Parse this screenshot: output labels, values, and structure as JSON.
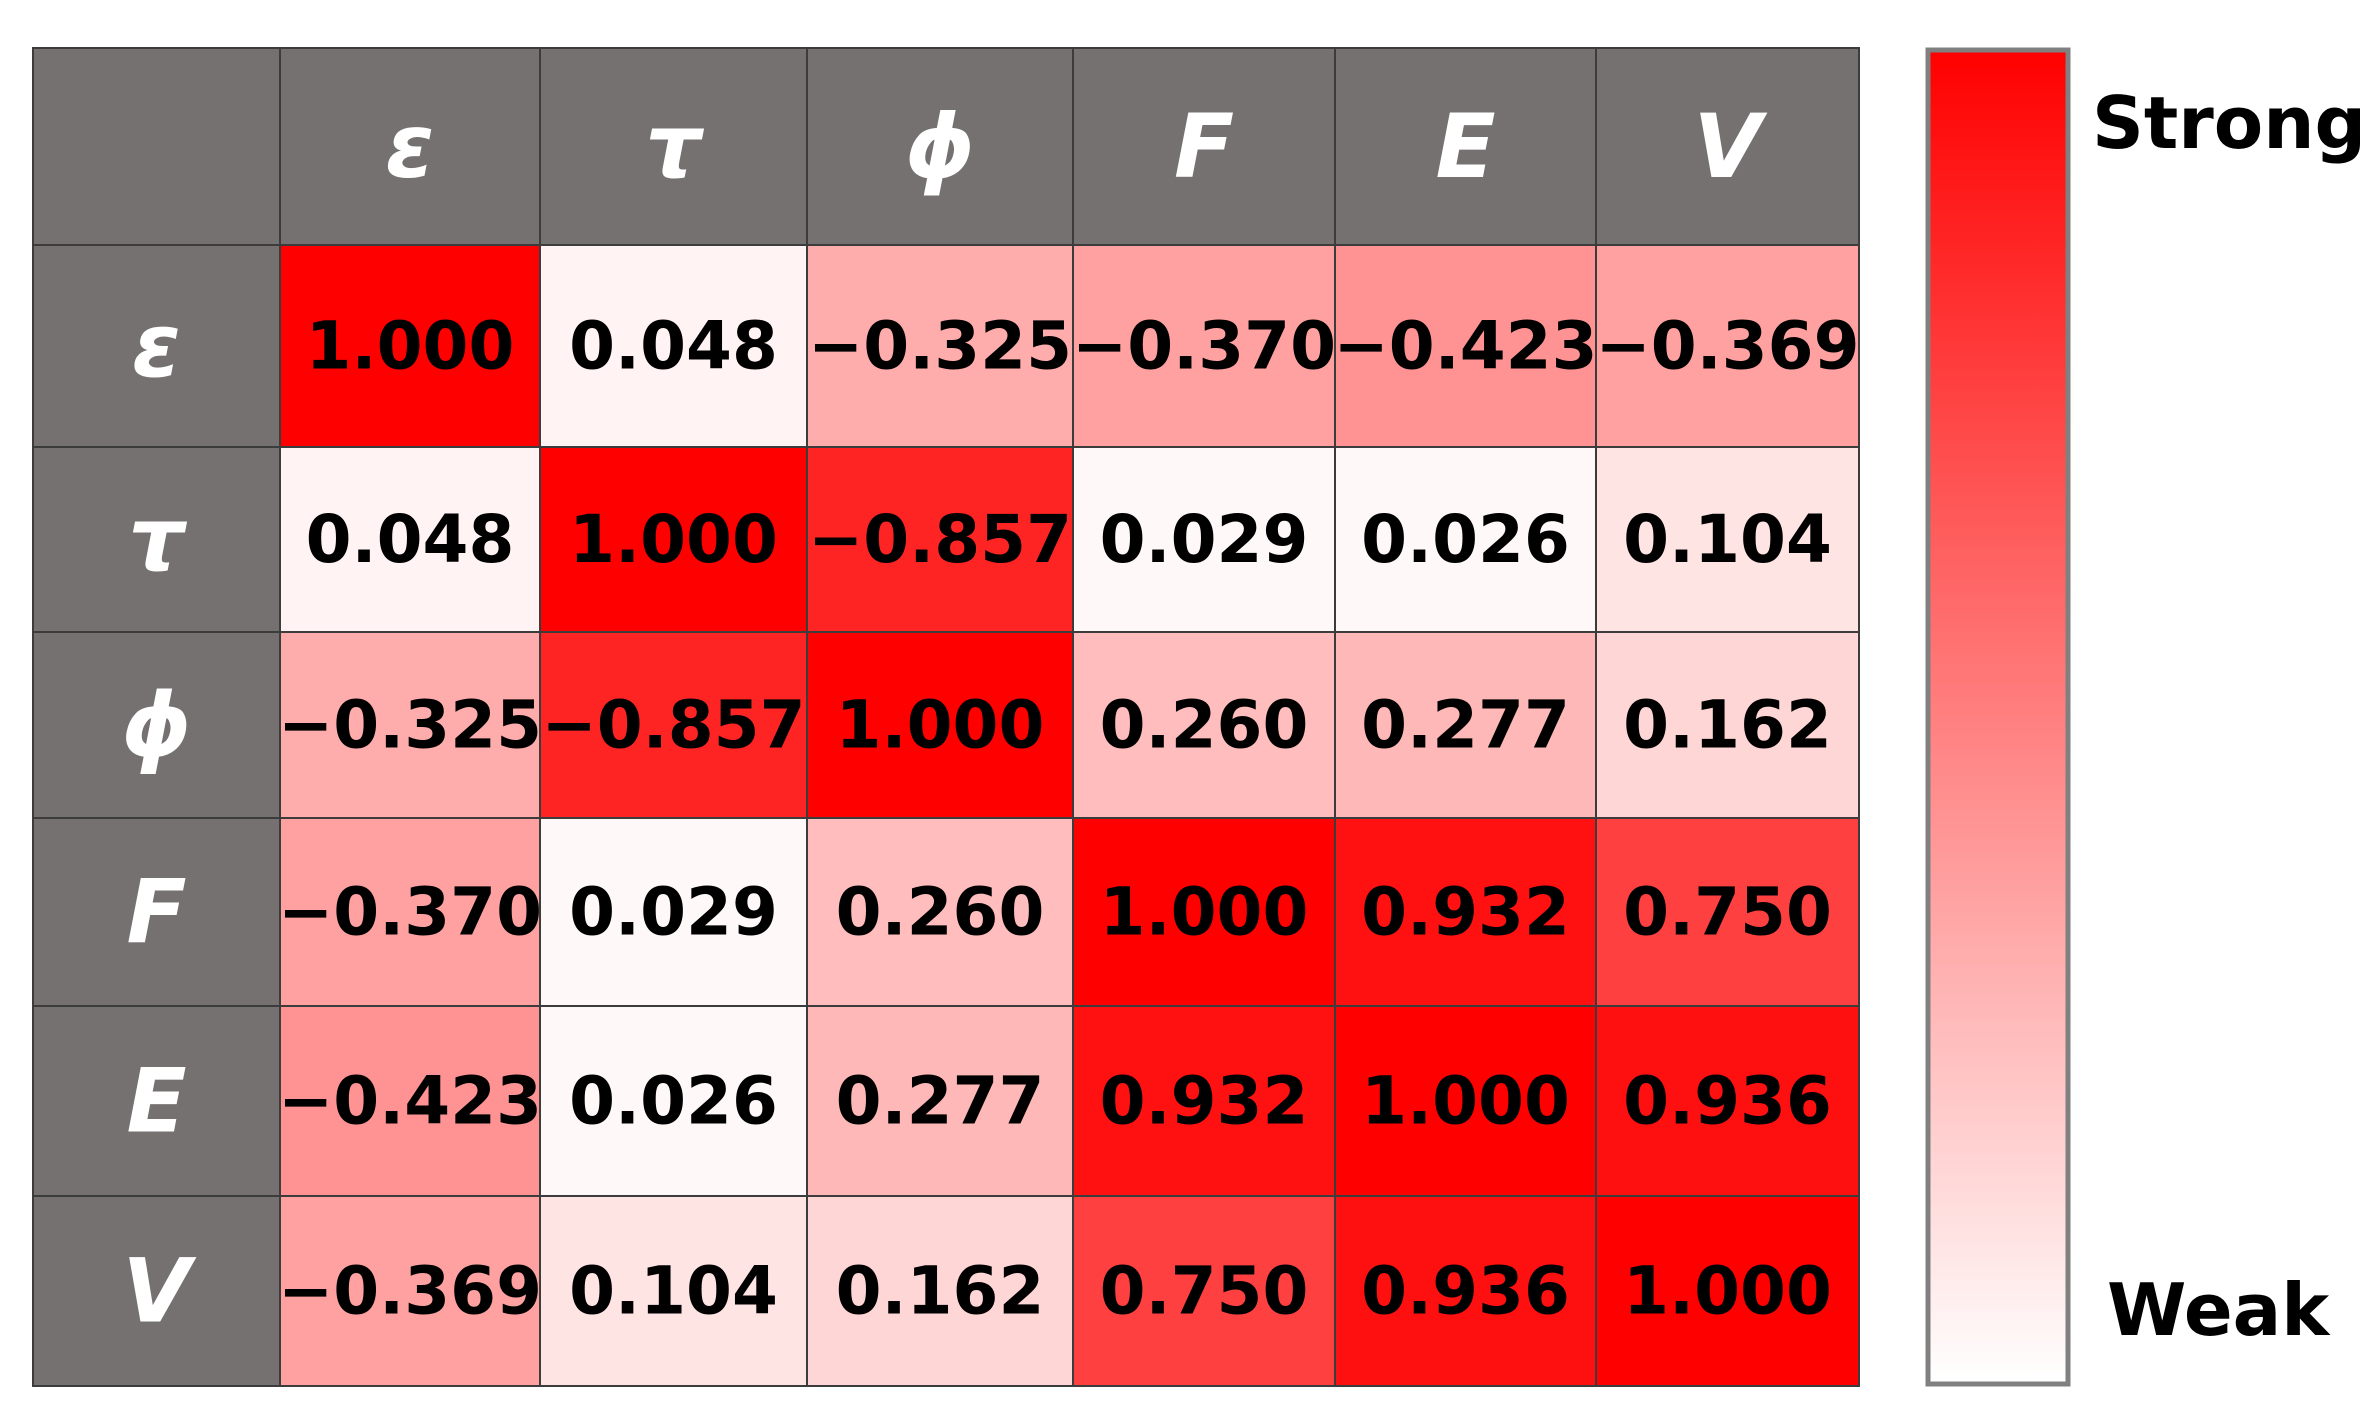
{
  "chart_data": {
    "type": "heatmap",
    "title": "",
    "row_labels": [
      "ε",
      "τ",
      "ϕ",
      "F",
      "E",
      "V"
    ],
    "col_labels": [
      "ε",
      "τ",
      "ϕ",
      "F",
      "E",
      "V"
    ],
    "values": [
      [
        1.0,
        0.048,
        -0.325,
        -0.37,
        -0.423,
        -0.369
      ],
      [
        0.048,
        1.0,
        -0.857,
        0.029,
        0.026,
        0.104
      ],
      [
        -0.325,
        -0.857,
        1.0,
        0.26,
        0.277,
        0.162
      ],
      [
        -0.37,
        0.029,
        0.26,
        1.0,
        0.932,
        0.75
      ],
      [
        -0.423,
        0.026,
        0.277,
        0.932,
        1.0,
        0.936
      ],
      [
        -0.369,
        0.104,
        0.162,
        0.75,
        0.936,
        1.0
      ]
    ],
    "value_labels": [
      [
        "1.000",
        "0.048",
        "−0.325",
        "−0.370",
        "−0.423",
        "−0.369"
      ],
      [
        "0.048",
        "1.000",
        "−0.857",
        "0.029",
        "0.026",
        "0.104"
      ],
      [
        "−0.325",
        "−0.857",
        "1.000",
        "0.260",
        "0.277",
        "0.162"
      ],
      [
        "−0.370",
        "0.029",
        "0.260",
        "1.000",
        "0.932",
        "0.750"
      ],
      [
        "−0.423",
        "0.026",
        "0.277",
        "0.932",
        "1.000",
        "0.936"
      ],
      [
        "−0.369",
        "0.104",
        "0.162",
        "0.750",
        "0.936",
        "1.000"
      ]
    ],
    "color_scale": {
      "strong_label": "Strong",
      "weak_label": "Weak",
      "strong_color": "#ff0000",
      "weak_color": "#ffffff",
      "header_color": "#767171",
      "grid_color": "#3c3c3c"
    }
  }
}
